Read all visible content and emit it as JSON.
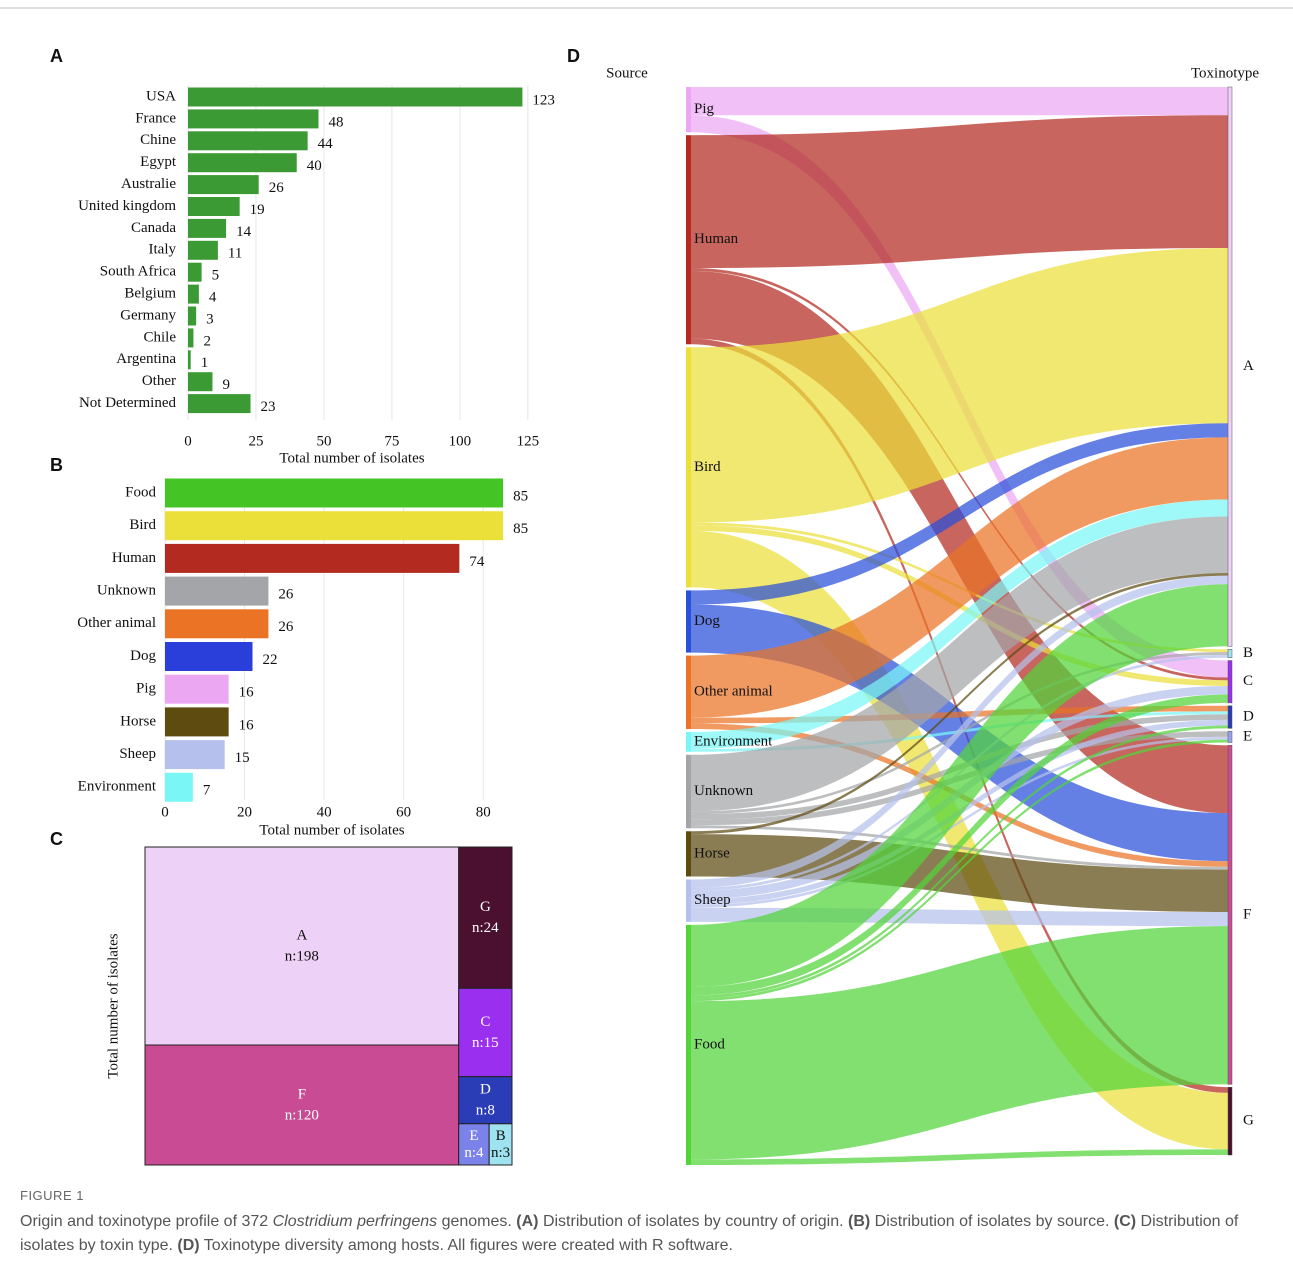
{
  "chart_data": [
    {
      "type": "hbar",
      "panel": "A",
      "categories": [
        "USA",
        "France",
        "Chine",
        "Egypt",
        "Australie",
        "United kingdom",
        "Canada",
        "Italy",
        "South Africa",
        "Belgium",
        "Germany",
        "Chile",
        "Argentina",
        "Other",
        "Not Determined"
      ],
      "values": [
        123,
        48,
        44,
        40,
        26,
        19,
        14,
        11,
        5,
        4,
        3,
        2,
        1,
        9,
        23
      ],
      "color": "#3c9a35",
      "xlim": [
        0,
        128
      ],
      "xticks": [
        0,
        25,
        50,
        75,
        100,
        125
      ],
      "xlabel": "Total number of isolates",
      "grid": true
    },
    {
      "type": "hbar",
      "panel": "B",
      "categories": [
        "Food",
        "Bird",
        "Human",
        "Unknown",
        "Other animal",
        "Dog",
        "Pig",
        "Horse",
        "Sheep",
        "Environment"
      ],
      "values": [
        85,
        85,
        74,
        26,
        26,
        22,
        16,
        16,
        15,
        7
      ],
      "colors": [
        "#44c425",
        "#ebdf3a",
        "#b22a20",
        "#a3a5a8",
        "#ea7325",
        "#2a3fd9",
        "#eca7f2",
        "#5e4b10",
        "#b6c0ec",
        "#7af6f6"
      ],
      "xlim": [
        0,
        89
      ],
      "xticks": [
        0,
        20,
        40,
        60,
        80
      ],
      "xlabel": "Total number of isolates",
      "grid": true
    },
    {
      "type": "treemap",
      "panel": "C",
      "ylabel": "Total number of isolates",
      "categories": [
        "A",
        "F",
        "G",
        "C",
        "D",
        "E",
        "B"
      ],
      "values": [
        198,
        120,
        24,
        15,
        8,
        4,
        3
      ],
      "value_labels": [
        "n:198",
        "n:120",
        "n:24",
        "n:15",
        "n:8",
        "n:4",
        "n:3"
      ],
      "colors": [
        "#eed1f7",
        "#c84b93",
        "#4b1030",
        "#9b2ff0",
        "#2a3db6",
        "#7b83ea",
        "#9ee3ef"
      ]
    },
    {
      "type": "sankey",
      "panel": "D",
      "source_label": "Source",
      "target_label": "Toxinotype",
      "sources": [
        {
          "name": "Pig",
          "color": "#eca7f2"
        },
        {
          "name": "Human",
          "color": "#b22a20"
        },
        {
          "name": "Bird",
          "color": "#ebdf3a"
        },
        {
          "name": "Dog",
          "color": "#2a4fd9"
        },
        {
          "name": "Other animal",
          "color": "#ea7325"
        },
        {
          "name": "Environment",
          "color": "#7af6f6"
        },
        {
          "name": "Unknown",
          "color": "#a3a5a8"
        },
        {
          "name": "Horse",
          "color": "#5e4b10"
        },
        {
          "name": "Sheep",
          "color": "#b6c0ec"
        },
        {
          "name": "Food",
          "color": "#52d43a"
        }
      ],
      "targets": [
        {
          "name": "A",
          "color": "#eed1f7"
        },
        {
          "name": "B",
          "color": "#9ee3ef"
        },
        {
          "name": "C",
          "color": "#9b2ff0"
        },
        {
          "name": "D",
          "color": "#2a3db6"
        },
        {
          "name": "E",
          "color": "#9aa2ee"
        },
        {
          "name": "F",
          "color": "#c84b93"
        },
        {
          "name": "G",
          "color": "#4b1030"
        }
      ],
      "links": [
        {
          "source": 0,
          "target": 0,
          "value": 10
        },
        {
          "source": 0,
          "target": 2,
          "value": 6
        },
        {
          "source": 1,
          "target": 0,
          "value": 47
        },
        {
          "source": 1,
          "target": 2,
          "value": 1
        },
        {
          "source": 1,
          "target": 5,
          "value": 24
        },
        {
          "source": 1,
          "target": 6,
          "value": 2
        },
        {
          "source": 2,
          "target": 0,
          "value": 62
        },
        {
          "source": 2,
          "target": 1,
          "value": 1
        },
        {
          "source": 2,
          "target": 2,
          "value": 2
        },
        {
          "source": 2,
          "target": 6,
          "value": 20
        },
        {
          "source": 3,
          "target": 0,
          "value": 5
        },
        {
          "source": 3,
          "target": 5,
          "value": 17
        },
        {
          "source": 4,
          "target": 0,
          "value": 22
        },
        {
          "source": 4,
          "target": 3,
          "value": 2
        },
        {
          "source": 4,
          "target": 5,
          "value": 2
        },
        {
          "source": 5,
          "target": 0,
          "value": 6
        },
        {
          "source": 5,
          "target": 3,
          "value": 1
        },
        {
          "source": 6,
          "target": 0,
          "value": 20
        },
        {
          "source": 6,
          "target": 1,
          "value": 1
        },
        {
          "source": 6,
          "target": 3,
          "value": 2
        },
        {
          "source": 6,
          "target": 4,
          "value": 2
        },
        {
          "source": 6,
          "target": 5,
          "value": 1
        },
        {
          "source": 7,
          "target": 0,
          "value": 1
        },
        {
          "source": 7,
          "target": 5,
          "value": 15
        },
        {
          "source": 8,
          "target": 0,
          "value": 3
        },
        {
          "source": 8,
          "target": 1,
          "value": 1
        },
        {
          "source": 8,
          "target": 2,
          "value": 3
        },
        {
          "source": 8,
          "target": 3,
          "value": 2
        },
        {
          "source": 8,
          "target": 4,
          "value": 1
        },
        {
          "source": 8,
          "target": 5,
          "value": 5
        },
        {
          "source": 9,
          "target": 0,
          "value": 22
        },
        {
          "source": 9,
          "target": 2,
          "value": 3
        },
        {
          "source": 9,
          "target": 3,
          "value": 1
        },
        {
          "source": 9,
          "target": 4,
          "value": 1
        },
        {
          "source": 9,
          "target": 5,
          "value": 56
        },
        {
          "source": 9,
          "target": 6,
          "value": 2
        }
      ]
    }
  ],
  "caption": {
    "label": "FIGURE 1",
    "parts": [
      {
        "text": "Origin and toxinotype profile of 372 ",
        "style": "normal"
      },
      {
        "text": "Clostridium perfringens",
        "style": "italic"
      },
      {
        "text": " genomes. ",
        "style": "normal"
      },
      {
        "text": "(A)",
        "style": "bold"
      },
      {
        "text": " Distribution of isolates by country of origin. ",
        "style": "normal"
      },
      {
        "text": "(B)",
        "style": "bold"
      },
      {
        "text": " Distribution of isolates by source. ",
        "style": "normal"
      },
      {
        "text": "(C)",
        "style": "bold"
      },
      {
        "text": " Distribution of isolates by toxin type. ",
        "style": "normal"
      },
      {
        "text": "(D)",
        "style": "bold"
      },
      {
        "text": " Toxinotype diversity among hosts. All figures were created with R software.",
        "style": "normal"
      }
    ]
  }
}
